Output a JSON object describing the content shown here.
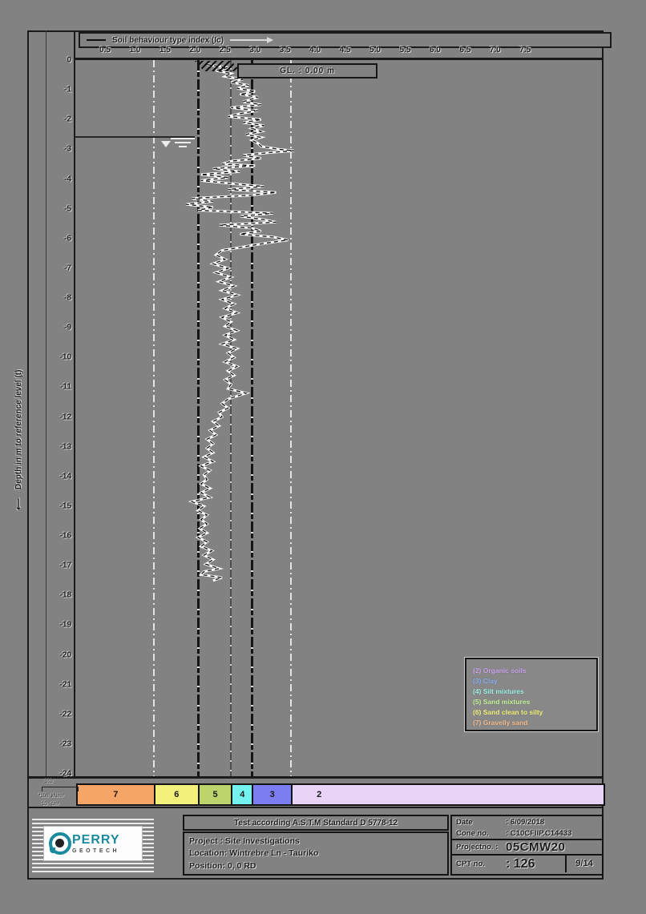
{
  "colors": {
    "background": "#828282",
    "frame": "#1a1a1a",
    "trace_outline": "#ffffff",
    "trace_dash": "#111111",
    "zone7": "#f7a566",
    "zone6": "#f4f07c",
    "zone5": "#bdd46d",
    "zone4": "#74f2ef",
    "zone3": "#7b7df0",
    "zone2": "#e9d4f7",
    "legend2": "#cda4f0",
    "legend3": "#8fb0f5",
    "legend4": "#9ef3e4",
    "legend5": "#c6f59b",
    "legend6": "#f6f77c",
    "legend7": "#f7bd8d",
    "logo_teal": "#1a8a9c"
  },
  "header": {
    "series_label": "Soil behaviour type index (Ic)",
    "gl_text": "GL. :  0.00 m"
  },
  "x_axis": {
    "ticks": [
      0.5,
      1.0,
      1.5,
      2.0,
      2.5,
      3.0,
      3.5,
      4.0,
      4.5,
      5.0,
      5.5,
      6.0,
      6.5,
      7.0,
      7.5
    ]
  },
  "y_axis": {
    "arrow": "⟵",
    "label": "Depth in m to reference level (t)",
    "ticks": [
      0,
      -1,
      -2,
      -3,
      -4,
      -5,
      -6,
      -7,
      -8,
      -9,
      -10,
      -11,
      -12,
      -13,
      -14,
      -15,
      -16,
      -17,
      -18,
      -19,
      -20,
      -21,
      -22,
      -23,
      -24
    ]
  },
  "chart_data": {
    "type": "line",
    "title": "Soil behaviour type index (Ic)",
    "xlabel": "Soil behaviour type index (Ic)",
    "ylabel": "Depth in m to reference level (m)",
    "xlim": [
      0,
      8.78
    ],
    "ylim": [
      0,
      -24
    ],
    "grid_boundaries_ic": [
      1.31,
      2.05,
      2.6,
      2.95,
      3.6
    ],
    "water_table_depth_m": -2.56,
    "ground_level_m": 0.0,
    "series": [
      {
        "name": "Ic",
        "points_depth_ic": [
          [
            0.15,
            2.2
          ],
          [
            0.25,
            2.55
          ],
          [
            0.35,
            2.35
          ],
          [
            0.45,
            2.6
          ],
          [
            0.55,
            2.5
          ],
          [
            0.65,
            2.8
          ],
          [
            0.75,
            2.6
          ],
          [
            0.85,
            2.9
          ],
          [
            0.95,
            2.7
          ],
          [
            1.05,
            3.0
          ],
          [
            1.15,
            2.75
          ],
          [
            1.25,
            3.05
          ],
          [
            1.4,
            2.8
          ],
          [
            1.5,
            3.1
          ],
          [
            1.6,
            2.6
          ],
          [
            1.7,
            3.05
          ],
          [
            1.8,
            2.75
          ],
          [
            1.9,
            2.55
          ],
          [
            2.0,
            3.1
          ],
          [
            2.1,
            2.8
          ],
          [
            2.2,
            3.15
          ],
          [
            2.3,
            2.95
          ],
          [
            2.4,
            3.1
          ],
          [
            2.5,
            2.85
          ],
          [
            2.6,
            3.1
          ],
          [
            2.7,
            2.95
          ],
          [
            2.8,
            3.05
          ],
          [
            2.9,
            3.1
          ],
          [
            3.0,
            3.4
          ],
          [
            3.05,
            3.65
          ],
          [
            3.1,
            3.3
          ],
          [
            3.2,
            2.8
          ],
          [
            3.3,
            3.1
          ],
          [
            3.4,
            2.6
          ],
          [
            3.5,
            2.45
          ],
          [
            3.55,
            3.0
          ],
          [
            3.65,
            2.3
          ],
          [
            3.75,
            2.75
          ],
          [
            3.85,
            2.1
          ],
          [
            3.95,
            2.55
          ],
          [
            4.05,
            2.1
          ],
          [
            4.15,
            2.6
          ],
          [
            4.25,
            3.15
          ],
          [
            4.35,
            2.55
          ],
          [
            4.45,
            3.35
          ],
          [
            4.55,
            2.9
          ],
          [
            4.65,
            1.95
          ],
          [
            4.75,
            2.3
          ],
          [
            4.85,
            1.85
          ],
          [
            4.95,
            2.3
          ],
          [
            5.05,
            2.05
          ],
          [
            5.15,
            3.3
          ],
          [
            5.25,
            2.75
          ],
          [
            5.35,
            3.1
          ],
          [
            5.45,
            3.35
          ],
          [
            5.55,
            2.4
          ],
          [
            5.65,
            2.95
          ],
          [
            5.75,
            3.1
          ],
          [
            5.85,
            2.75
          ],
          [
            5.95,
            3.3
          ],
          [
            6.05,
            3.55
          ],
          [
            6.15,
            3.2
          ],
          [
            6.25,
            2.9
          ],
          [
            6.4,
            2.45
          ],
          [
            6.55,
            2.35
          ],
          [
            6.7,
            2.5
          ],
          [
            6.85,
            2.3
          ],
          [
            7.0,
            2.55
          ],
          [
            7.15,
            2.35
          ],
          [
            7.3,
            2.6
          ],
          [
            7.45,
            2.4
          ],
          [
            7.6,
            2.65
          ],
          [
            7.75,
            2.45
          ],
          [
            7.9,
            2.7
          ],
          [
            8.05,
            2.45
          ],
          [
            8.2,
            2.65
          ],
          [
            8.35,
            2.5
          ],
          [
            8.5,
            2.7
          ],
          [
            8.65,
            2.45
          ],
          [
            8.8,
            2.6
          ],
          [
            8.95,
            2.5
          ],
          [
            9.1,
            2.7
          ],
          [
            9.25,
            2.5
          ],
          [
            9.4,
            2.65
          ],
          [
            9.55,
            2.45
          ],
          [
            9.7,
            2.7
          ],
          [
            9.85,
            2.55
          ],
          [
            10.0,
            2.65
          ],
          [
            10.15,
            2.5
          ],
          [
            10.3,
            2.7
          ],
          [
            10.45,
            2.55
          ],
          [
            10.6,
            2.65
          ],
          [
            10.75,
            2.5
          ],
          [
            10.9,
            2.6
          ],
          [
            11.05,
            2.55
          ],
          [
            11.2,
            2.85
          ],
          [
            11.3,
            2.7
          ],
          [
            11.4,
            2.55
          ],
          [
            11.55,
            2.45
          ],
          [
            11.7,
            2.55
          ],
          [
            11.85,
            2.4
          ],
          [
            12.0,
            2.45
          ],
          [
            12.15,
            2.3
          ],
          [
            12.3,
            2.4
          ],
          [
            12.45,
            2.25
          ],
          [
            12.6,
            2.35
          ],
          [
            12.75,
            2.2
          ],
          [
            12.9,
            2.3
          ],
          [
            13.05,
            2.2
          ],
          [
            13.2,
            2.3
          ],
          [
            13.35,
            2.15
          ],
          [
            13.5,
            2.3
          ],
          [
            13.65,
            2.1
          ],
          [
            13.8,
            2.25
          ],
          [
            13.95,
            2.15
          ],
          [
            14.1,
            2.2
          ],
          [
            14.25,
            2.1
          ],
          [
            14.4,
            2.25
          ],
          [
            14.55,
            2.1
          ],
          [
            14.7,
            2.25
          ],
          [
            14.85,
            1.95
          ],
          [
            15.0,
            2.15
          ],
          [
            15.15,
            2.05
          ],
          [
            15.3,
            2.2
          ],
          [
            15.45,
            2.1
          ],
          [
            15.6,
            2.2
          ],
          [
            15.75,
            2.08
          ],
          [
            15.9,
            2.2
          ],
          [
            16.05,
            2.05
          ],
          [
            16.2,
            2.2
          ],
          [
            16.35,
            2.1
          ],
          [
            16.5,
            2.28
          ],
          [
            16.65,
            2.15
          ],
          [
            16.8,
            2.3
          ],
          [
            16.95,
            2.18
          ],
          [
            17.1,
            2.4
          ],
          [
            17.2,
            2.15
          ],
          [
            17.3,
            2.1
          ],
          [
            17.4,
            2.45
          ],
          [
            17.5,
            2.3
          ]
        ]
      }
    ]
  },
  "zone_bar": {
    "zones": [
      {
        "label": "7",
        "from": 0.02,
        "to": 1.31,
        "color_key": "zone7"
      },
      {
        "label": "6",
        "from": 1.31,
        "to": 2.05,
        "color_key": "zone6"
      },
      {
        "label": "5",
        "from": 2.05,
        "to": 2.6,
        "color_key": "zone5"
      },
      {
        "label": "4",
        "from": 2.6,
        "to": 2.95,
        "color_key": "zone4"
      },
      {
        "label": "3",
        "from": 2.95,
        "to": 3.6,
        "color_key": "zone3"
      },
      {
        "label": "2",
        "from": 3.6,
        "to": 8.78,
        "color_key": "zone2"
      }
    ]
  },
  "legend": {
    "items": [
      {
        "label": "(2) Organic soils",
        "color_key": "legend2"
      },
      {
        "label": "(3) Clay",
        "color_key": "legend3"
      },
      {
        "label": "(4) Silt mixtures",
        "color_key": "legend4"
      },
      {
        "label": "(5) Sand mixtures",
        "color_key": "legend5"
      },
      {
        "label": "(6) Sand clean to silty",
        "color_key": "legend6"
      },
      {
        "label": "(7) Gravelly sand",
        "color_key": "legend7"
      }
    ]
  },
  "scale_note": {
    "l1": "102",
    "l2": "*100  kN/m²",
    "l3": "10   cm²"
  },
  "footer": {
    "standard": "Test according A.S.T.M Standard D 5778-12",
    "project_line": "Project : Site Investigations",
    "location_line": "Location: Wintrebre Ln - Tauriko",
    "position_line": "Position: 0, 0 RD",
    "date_label": "Date",
    "date_value": ": 6/09/2018",
    "cone_label": "Cone no.",
    "cone_value": ": C10CFIIP.C14433",
    "projectno_label": "Projectno. :",
    "projectno_value": "05CMW20",
    "cptno_label": "CPT no.",
    "cptno_value": ": 126",
    "page_number": "9/14"
  },
  "logo": {
    "name": "PERRY",
    "sub": "GEOTECH"
  }
}
